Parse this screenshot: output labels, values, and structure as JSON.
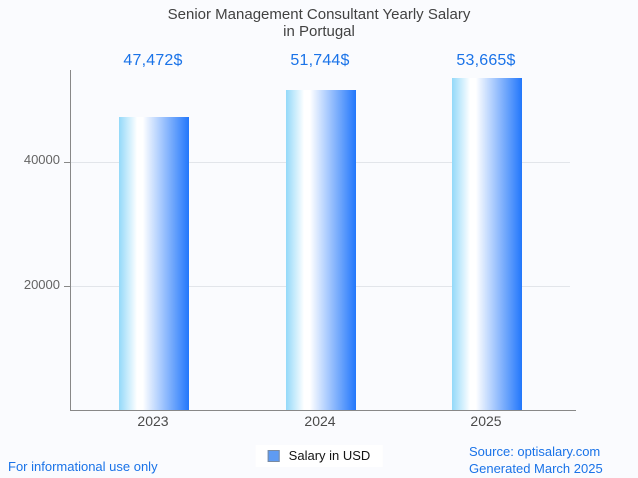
{
  "header": {
    "title_line1": "Senior Management Consultant Yearly Salary",
    "title_line2": "in Portugal"
  },
  "chart_data": {
    "type": "bar",
    "title": "Senior Management Consultant Yearly Salary in Portugal",
    "categories": [
      "2023",
      "2024",
      "2025"
    ],
    "series": [
      {
        "name": "Salary in USD",
        "values": [
          47472,
          51744,
          53665
        ]
      }
    ],
    "values": [
      47472,
      51744,
      53665
    ],
    "value_labels": [
      "47,472$",
      "51,744$",
      "53,665$"
    ],
    "xlabel": "",
    "ylabel": "",
    "yticks": [
      20000,
      40000
    ],
    "ylim": [
      0,
      55000
    ],
    "grid": true,
    "legend_position": "bottom-center"
  },
  "footer": {
    "disclaimer": "For informational use only",
    "source": "Source: optisalary.com",
    "generated": "Generated March 2025"
  },
  "colors": {
    "accent_blue": "#1a73e8",
    "title_gray": "#424242",
    "axis_gray": "#888888",
    "gridline_gray": "#e2e5ea",
    "background": "#fafbfe",
    "bar_gradient_left": "#93d9f9",
    "bar_gradient_mid": "#ffffff",
    "bar_gradient_right": "#2277fb",
    "legend_marker_fill": "#5f9bf2",
    "legend_marker_border": "#7a8aa0"
  }
}
